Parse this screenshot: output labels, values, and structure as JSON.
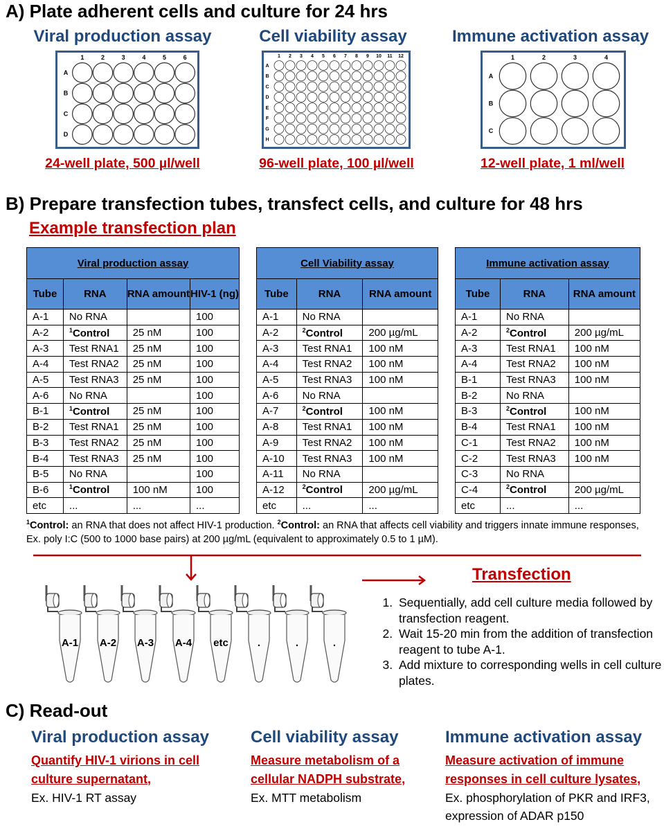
{
  "sectionA": {
    "heading": "A) Plate adherent cells and culture for 24 hrs",
    "plates": [
      {
        "title": "Viral production assay",
        "label": "24-well plate, 500 µl/well",
        "rows": [
          "A",
          "B",
          "C",
          "D"
        ],
        "cols": [
          "1",
          "2",
          "3",
          "4",
          "5",
          "6"
        ]
      },
      {
        "title": "Cell viability assay",
        "label": "96-well plate, 100 µl/well",
        "rows": [
          "A",
          "B",
          "C",
          "D",
          "E",
          "F",
          "G",
          "H"
        ],
        "cols": [
          "1",
          "2",
          "3",
          "4",
          "5",
          "6",
          "7",
          "8",
          "9",
          "10",
          "11",
          "12"
        ]
      },
      {
        "title": "Immune activation assay",
        "label": "12-well plate, 1 ml/well",
        "rows": [
          "A",
          "B",
          "C"
        ],
        "cols": [
          "1",
          "2",
          "3",
          "4"
        ]
      }
    ]
  },
  "sectionB": {
    "heading": "B) Prepare transfection tubes, transfect cells, and culture for 48 hrs",
    "plan_title": "Example transfection plan",
    "tables": [
      {
        "title": "Viral production assay",
        "headers": [
          "Tube",
          "RNA",
          "RNA amount",
          "HIV-1 (ng)"
        ],
        "rows": [
          {
            "tube": "A-1",
            "rna": "No RNA",
            "amount": "",
            "hiv": "100"
          },
          {
            "tube": "A-2",
            "sup": "1",
            "rna": "Control",
            "amount": "25 nM",
            "hiv": "100"
          },
          {
            "tube": "A-3",
            "rna": "Test RNA1",
            "amount": "25 nM",
            "hiv": "100"
          },
          {
            "tube": "A-4",
            "rna": "Test RNA2",
            "amount": "25 nM",
            "hiv": "100"
          },
          {
            "tube": "A-5",
            "rna": "Test RNA3",
            "amount": "25 nM",
            "hiv": "100"
          },
          {
            "tube": "A-6",
            "rna": "No RNA",
            "amount": "",
            "hiv": "100"
          },
          {
            "tube": "B-1",
            "sup": "1",
            "rna": "Control",
            "amount": "25 nM",
            "hiv": "100"
          },
          {
            "tube": "B-2",
            "rna": "Test RNA1",
            "amount": "25 nM",
            "hiv": "100"
          },
          {
            "tube": "B-3",
            "rna": "Test RNA2",
            "amount": "25 nM",
            "hiv": "100"
          },
          {
            "tube": "B-4",
            "rna": "Test RNA3",
            "amount": "25 nM",
            "hiv": "100"
          },
          {
            "tube": "B-5",
            "rna": "No RNA",
            "amount": "",
            "hiv": "100"
          },
          {
            "tube": "B-6",
            "sup": "1",
            "rna": "Control",
            "amount": "100 nM",
            "hiv": "100"
          },
          {
            "tube": "etc",
            "rna": "...",
            "amount": "...",
            "hiv": "..."
          }
        ]
      },
      {
        "title": "Cell Viability assay",
        "headers": [
          "Tube",
          "RNA",
          "RNA amount"
        ],
        "rows": [
          {
            "tube": "A-1",
            "rna": "No RNA",
            "amount": ""
          },
          {
            "tube": "A-2",
            "sup": "2",
            "rna": "Control",
            "amount": "200 µg/mL"
          },
          {
            "tube": "A-3",
            "rna": "Test RNA1",
            "amount": "100 nM"
          },
          {
            "tube": "A-4",
            "rna": "Test RNA2",
            "amount": "100 nM"
          },
          {
            "tube": "A-5",
            "rna": "Test RNA3",
            "amount": "100 nM"
          },
          {
            "tube": "A-6",
            "rna": "No RNA",
            "amount": ""
          },
          {
            "tube": "A-7",
            "sup": "2",
            "rna": "Control",
            "amount": "100 nM"
          },
          {
            "tube": "A-8",
            "rna": "Test RNA1",
            "amount": "100 nM"
          },
          {
            "tube": "A-9",
            "rna": "Test RNA2",
            "amount": "100 nM"
          },
          {
            "tube": "A-10",
            "rna": "Test RNA3",
            "amount": "100 nM"
          },
          {
            "tube": "A-11",
            "rna": "No RNA",
            "amount": ""
          },
          {
            "tube": "A-12",
            "sup": "2",
            "rna": "Control",
            "amount": "200 µg/mL"
          },
          {
            "tube": "etc",
            "rna": "...",
            "amount": "..."
          }
        ]
      },
      {
        "title": "Immune activation assay",
        "headers": [
          "Tube",
          "RNA",
          "RNA amount"
        ],
        "rows": [
          {
            "tube": "A-1",
            "rna": "No RNA",
            "amount": ""
          },
          {
            "tube": "A-2",
            "sup": "2",
            "rna": "Control",
            "amount": "200 µg/mL"
          },
          {
            "tube": "A-3",
            "rna": "Test RNA1",
            "amount": "100 nM"
          },
          {
            "tube": "A-4",
            "rna": "Test RNA2",
            "amount": "100 nM"
          },
          {
            "tube": "B-1",
            "rna": "Test RNA3",
            "amount": "100 nM"
          },
          {
            "tube": "B-2",
            "rna": "No RNA",
            "amount": ""
          },
          {
            "tube": "B-3",
            "sup": "2",
            "rna": "Control",
            "amount": "100 nM"
          },
          {
            "tube": "B-4",
            "rna": "Test RNA1",
            "amount": "100 nM"
          },
          {
            "tube": "C-1",
            "rna": "Test RNA2",
            "amount": "100 nM"
          },
          {
            "tube": "C-2",
            "rna": "Test RNA3",
            "amount": "100 nM"
          },
          {
            "tube": "C-3",
            "rna": "No RNA",
            "amount": ""
          },
          {
            "tube": "C-4",
            "sup": "2",
            "rna": "Control",
            "amount": "200 µg/mL"
          },
          {
            "tube": "etc",
            "rna": "...",
            "amount": "..."
          }
        ]
      }
    ],
    "footnote": {
      "sup1": "1",
      "term1": "Control:",
      "text1": " an RNA that does not affect HIV-1 production.  ",
      "sup2": "2",
      "term2": "Control:",
      "text2": " an RNA that affects cell viability and triggers innate immune responses, Ex. poly I:C (500 to 1000 base pairs) at 200 µg/mL (equivalent to approximately 0.5 to 1 µM)."
    },
    "tubes": [
      "A-1",
      "A-2",
      "A-3",
      "A-4",
      "etc",
      ".",
      ".",
      "."
    ],
    "transfection": {
      "title": "Transfection",
      "steps": [
        "Sequentially, add cell culture media followed by transfection reagent.",
        "Wait 15-20 min from the addition of transfection reagent to tube A-1.",
        "Add mixture to corresponding wells in cell culture plates."
      ]
    },
    "accent": "#c00000",
    "table_header_color": "#558ed5"
  },
  "sectionC": {
    "heading": "C) Read-out",
    "assays": [
      {
        "title": "Viral production assay",
        "method": "Quantify HIV-1 virions in cell culture supernatant",
        "suffix": ",",
        "example": "Ex. HIV-1 RT assay"
      },
      {
        "title": "Cell viability assay",
        "method": "Measure metabolism of a cellular NADPH substrate",
        "suffix": ",",
        "example": "Ex. MTT metabolism"
      },
      {
        "title": "Immune activation assay",
        "method": "Measure activation of immune responses in cell culture lysates",
        "suffix": ",",
        "example": "Ex. phosphorylation of PKR and IRF3, expression of ADAR p150"
      }
    ]
  }
}
